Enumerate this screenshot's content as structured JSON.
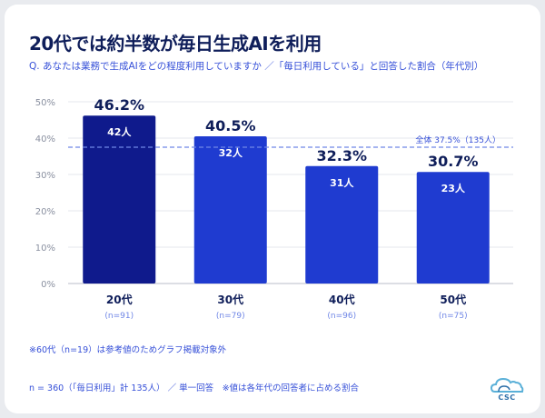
{
  "header": {
    "title": "20代では約半数が毎日生成AIを利用",
    "subtitle": "Q. あなたは業務で生成AIをどの程度利用していますか ／「毎日利用している」と回答した割合（年代別）"
  },
  "chart_data": {
    "type": "bar",
    "categories": [
      "20代",
      "30代",
      "40代",
      "50代"
    ],
    "category_sublabels": [
      "(n=91)",
      "(n=79)",
      "(n=96)",
      "(n=75)"
    ],
    "values": [
      46.2,
      40.5,
      32.3,
      30.7
    ],
    "value_labels": [
      "46.2%",
      "40.5%",
      "32.3%",
      "30.7%"
    ],
    "count_labels": [
      "42人",
      "32人",
      "31人",
      "23人"
    ],
    "ylim": [
      0,
      50
    ],
    "yticks": [
      0,
      10,
      20,
      30,
      40,
      50
    ],
    "ytick_labels": [
      "0%",
      "10%",
      "20%",
      "30%",
      "40%",
      "50%"
    ],
    "grid": true,
    "reference_line": {
      "value": 37.5,
      "label": "全体 37.5%（135人）"
    },
    "colors": [
      "#0f1a8c",
      "#1f3bd0",
      "#1f3bd0",
      "#1f3bd0"
    ],
    "value_label_color": "#0f1e5a",
    "reference_color": "#6f86e6"
  },
  "notes": {
    "exclusion": "※60代（n=19）は参考値のためグラフ掲載対象外",
    "footer": "n = 360（「毎日利用」計 135人） ／ 単一回答　※値は各年代の回答者に占める割合"
  },
  "logo": {
    "text": "CSC",
    "icon": "cloud-logo-icon"
  }
}
